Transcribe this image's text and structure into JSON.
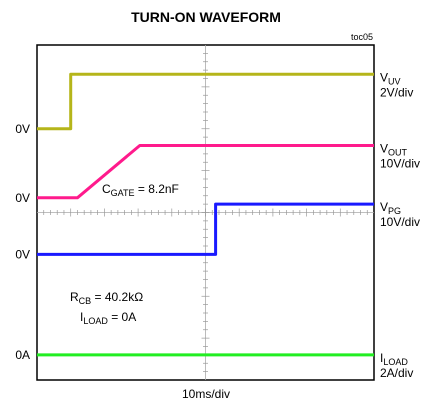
{
  "chart_data": {
    "type": "line",
    "title": "TURN-ON WAVEFORM",
    "figure_id": "toc05",
    "xlabel": "10ms/div",
    "x_divisions": 10,
    "y_divisions": 8,
    "grid": false,
    "series": [
      {
        "name": "VUV",
        "label_main": "V",
        "label_sub": "UV",
        "scale": "2V/div",
        "ground_label": "0V",
        "ground_div": 2.0,
        "color": "#b5b51a",
        "x": [
          0,
          1.0,
          1.0,
          10
        ],
        "y": [
          0,
          0,
          1.3,
          1.3
        ]
      },
      {
        "name": "VOUT",
        "label_main": "V",
        "label_sub": "OUT",
        "scale": "10V/div",
        "ground_label": "0V",
        "ground_div": 3.65,
        "color": "#ff1a8c",
        "x": [
          0,
          1.2,
          3.05,
          10
        ],
        "y": [
          0,
          0,
          1.25,
          1.25
        ]
      },
      {
        "name": "VPG",
        "label_main": "V",
        "label_sub": "PG",
        "scale": "10V/div",
        "ground_label": "0V",
        "ground_div": 5.0,
        "color": "#1a1aff",
        "x": [
          0,
          5.3,
          5.3,
          10
        ],
        "y": [
          0,
          0,
          1.2,
          1.2
        ]
      },
      {
        "name": "ILOAD",
        "label_main": "I",
        "label_sub": "LOAD",
        "scale": "2A/div",
        "ground_label": "0A",
        "ground_div": 7.4,
        "color": "#22ee22",
        "x": [
          0,
          10
        ],
        "y": [
          0,
          0
        ]
      }
    ],
    "annotations": [
      {
        "main": "C",
        "sub": "GATE",
        "rest": " = 8.2nF"
      },
      {
        "main": "R",
        "sub": "CB",
        "rest": " = 40.2kΩ"
      },
      {
        "main": "I",
        "sub": "LOAD",
        "rest": " = 0A"
      }
    ]
  }
}
